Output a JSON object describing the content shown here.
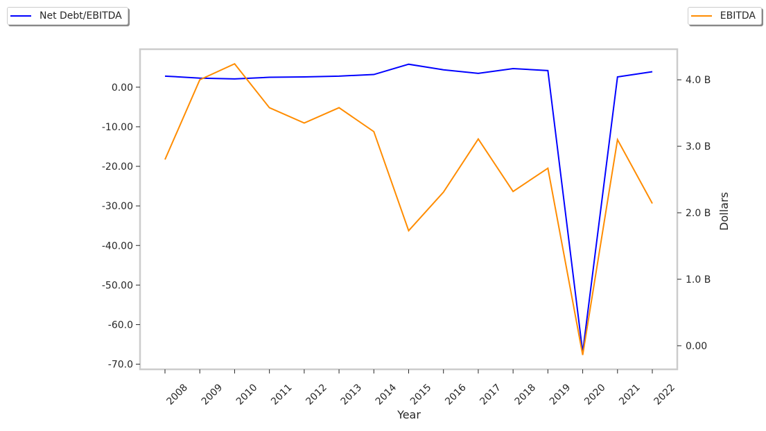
{
  "chart_data": {
    "type": "line",
    "xlabel": "Year",
    "ylabel_left": "",
    "ylabel_right": "Dollars",
    "x": [
      2008,
      2009,
      2010,
      2011,
      2012,
      2013,
      2014,
      2015,
      2016,
      2017,
      2018,
      2019,
      2020,
      2021,
      2022
    ],
    "series": [
      {
        "name": "Net Debt/EBITDA",
        "axis": "left",
        "color": "#0000ff",
        "values": [
          2.8,
          2.3,
          2.1,
          2.5,
          2.6,
          2.8,
          3.2,
          5.8,
          4.4,
          3.5,
          4.7,
          4.2,
          -67.0,
          2.6,
          3.9
        ]
      },
      {
        "name": "EBITDA",
        "axis": "right",
        "color": "#ff8c00",
        "values": [
          2.8,
          4.0,
          4.24,
          3.58,
          3.35,
          3.58,
          3.22,
          1.73,
          2.31,
          3.11,
          2.32,
          2.67,
          -0.14,
          3.1,
          2.14
        ]
      }
    ],
    "left_ticks": [
      0,
      -10,
      -20,
      -30,
      -40,
      -50,
      -60,
      -70
    ],
    "left_tick_labels": [
      "0.00",
      "-10.00",
      "-20.00",
      "-30.00",
      "-40.00",
      "-50.00",
      "-60.0",
      "-70.0"
    ],
    "right_ticks": [
      4,
      3,
      2,
      1,
      0
    ],
    "right_tick_labels": [
      "4.0 B",
      "3.0 B",
      "2.0 B",
      "1.0 B",
      "0.00"
    ],
    "left_ylim": [
      -71.3,
      9.6
    ],
    "right_ylim": [
      -0.355,
      4.46
    ],
    "grid": false,
    "legend_placement": [
      "top-left",
      "top-right"
    ]
  }
}
